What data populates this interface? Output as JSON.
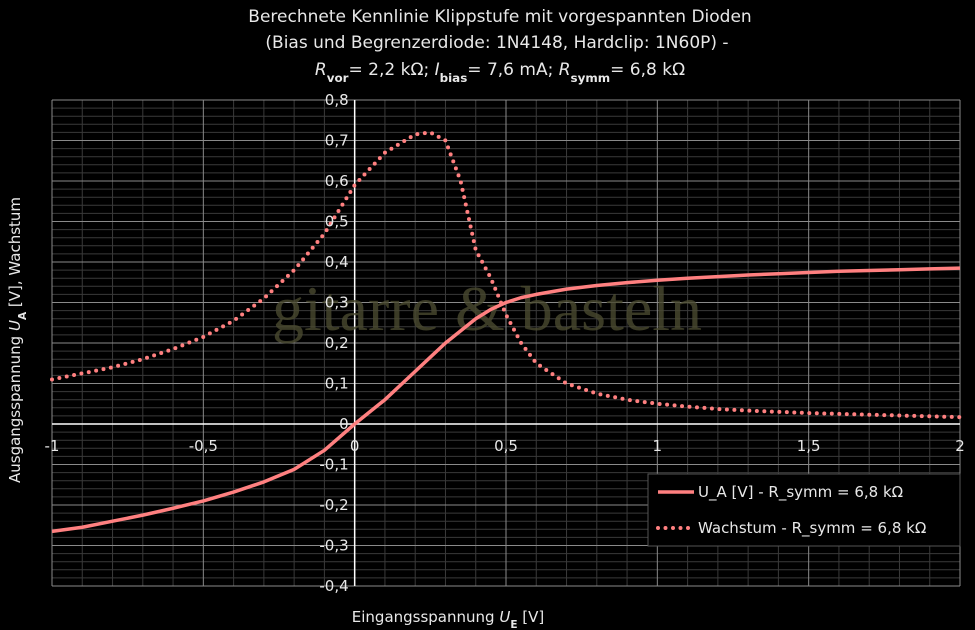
{
  "chart_data": {
    "type": "line",
    "title_lines": [
      "Berechnete Kennlinie Klippstufe mit vorgespannten Dioden",
      "(Bias und Begrenzerdiode: 1N4148, Hardclip: 1N60P) -"
    ],
    "title_params": [
      {
        "text": "R",
        "style": "italic"
      },
      {
        "text": "vor",
        "style": "sub"
      },
      {
        "text": "= 2,2 kΩ; ",
        "style": "normal"
      },
      {
        "text": "I",
        "style": "italic"
      },
      {
        "text": "bias",
        "style": "sub"
      },
      {
        "text": "= 7,6 mA; ",
        "style": "normal"
      },
      {
        "text": "R",
        "style": "italic"
      },
      {
        "text": "symm",
        "style": "sub"
      },
      {
        "text": "= 6,8 kΩ",
        "style": "normal"
      }
    ],
    "y_label": [
      {
        "text": "Ausgangsspannung ",
        "style": "normal"
      },
      {
        "text": "U",
        "style": "italic"
      },
      {
        "text": "A",
        "style": "sub"
      },
      {
        "text": " [V], Wachstum",
        "style": "normal"
      }
    ],
    "x_label": [
      {
        "text": "Eingangsspannung ",
        "style": "normal"
      },
      {
        "text": "U",
        "style": "italic"
      },
      {
        "text": "E",
        "style": "sub"
      },
      {
        "text": " [V]",
        "style": "normal"
      }
    ],
    "watermark": "gitarre & basteln",
    "x": [
      -1,
      -0.9,
      -0.8,
      -0.7,
      -0.6,
      -0.5,
      -0.4,
      -0.3,
      -0.2,
      -0.1,
      0,
      0.1,
      0.2,
      0.25,
      0.3,
      0.35,
      0.4,
      0.45,
      0.5,
      0.55,
      0.6,
      0.7,
      0.8,
      0.9,
      1.0,
      1.1,
      1.2,
      1.3,
      1.4,
      1.5,
      1.6,
      1.7,
      1.8,
      1.9,
      2.0
    ],
    "series": [
      {
        "name": "U_A [V] - R_symm = 6,8 kΩ",
        "color": "#ff8080",
        "style": "solid",
        "values": [
          -0.265,
          -0.255,
          -0.24,
          -0.225,
          -0.208,
          -0.19,
          -0.168,
          -0.143,
          -0.112,
          -0.065,
          0,
          0.06,
          0.13,
          0.165,
          0.2,
          0.23,
          0.26,
          0.283,
          0.3,
          0.312,
          0.32,
          0.333,
          0.342,
          0.349,
          0.355,
          0.36,
          0.364,
          0.368,
          0.371,
          0.374,
          0.377,
          0.379,
          0.381,
          0.383,
          0.385
        ]
      },
      {
        "name": "Wachstum - R_symm = 6,8 kΩ",
        "color": "#ff8080",
        "style": "dotted",
        "values": [
          0.11,
          0.125,
          0.14,
          0.16,
          0.185,
          0.215,
          0.255,
          0.31,
          0.38,
          0.47,
          0.59,
          0.67,
          0.715,
          0.72,
          0.7,
          0.6,
          0.43,
          0.36,
          0.27,
          0.2,
          0.15,
          0.1,
          0.075,
          0.06,
          0.05,
          0.043,
          0.037,
          0.033,
          0.03,
          0.027,
          0.025,
          0.023,
          0.021,
          0.019,
          0.017
        ]
      }
    ],
    "xlim": [
      -1,
      2
    ],
    "ylim": [
      -0.4,
      0.8
    ],
    "xticks": [
      -1,
      {
        "value": -0.5,
        "label": "-0,5"
      },
      0,
      {
        "value": 0.5,
        "label": "0,5"
      },
      1,
      {
        "value": 1.5,
        "label": "1,5"
      },
      2
    ],
    "yticks": [
      {
        "value": -0.4,
        "label": "-0,4"
      },
      {
        "value": -0.3,
        "label": "-0,3"
      },
      {
        "value": -0.2,
        "label": "-0,2"
      },
      {
        "value": -0.1,
        "label": "-0,1"
      },
      0,
      {
        "value": 0.1,
        "label": "0,1"
      },
      {
        "value": 0.2,
        "label": "0,2"
      },
      {
        "value": 0.3,
        "label": "0,3"
      },
      {
        "value": 0.4,
        "label": "0,4"
      },
      {
        "value": 0.5,
        "label": "0,5"
      },
      {
        "value": 0.6,
        "label": "0,6"
      },
      {
        "value": 0.7,
        "label": "0,7"
      },
      {
        "value": 0.8,
        "label": "0,8"
      }
    ],
    "grid": true,
    "minor_grid": true,
    "legend": "bottom-right"
  }
}
